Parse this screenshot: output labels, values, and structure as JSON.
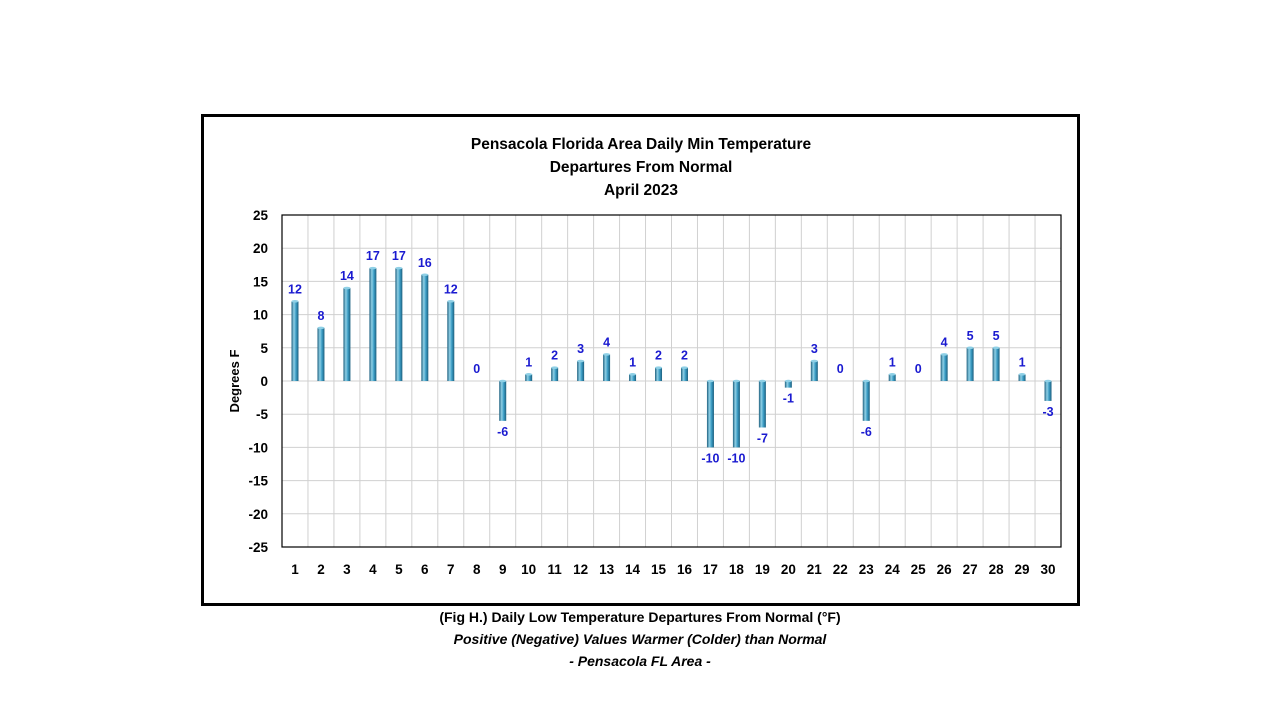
{
  "chart_data": {
    "type": "bar",
    "title": [
      "Pensacola Florida Area Daily Min Temperature",
      "Departures From Normal",
      "April 2023"
    ],
    "xlabel": "",
    "ylabel": "Degrees F",
    "ylim": [
      -25,
      25
    ],
    "yticks": [
      25,
      20,
      15,
      10,
      5,
      0,
      -5,
      -10,
      -15,
      -20,
      -25
    ],
    "grid": true,
    "legend": "none",
    "categories": [
      "1",
      "2",
      "3",
      "4",
      "5",
      "6",
      "7",
      "8",
      "9",
      "10",
      "11",
      "12",
      "13",
      "14",
      "15",
      "16",
      "17",
      "18",
      "19",
      "20",
      "21",
      "22",
      "23",
      "24",
      "25",
      "26",
      "27",
      "28",
      "29",
      "30"
    ],
    "values": [
      12,
      8,
      14,
      17,
      17,
      16,
      12,
      0,
      -6,
      1,
      2,
      3,
      4,
      1,
      2,
      2,
      -10,
      -10,
      -7,
      -1,
      3,
      0,
      -6,
      1,
      0,
      4,
      5,
      5,
      1,
      -3
    ],
    "colors": {
      "bar_light": "#8fd0e6",
      "bar_mid": "#3a9cc4",
      "bar_dark": "#1d5f7e",
      "label": "#1a1ad0",
      "grid": "#d0d0d0"
    }
  },
  "caption": {
    "line1": "(Fig H.) Daily Low Temperature Departures From Normal (°F)",
    "line2": "Positive (Negative) Values Warmer (Colder) than Normal",
    "line3": "- Pensacola FL Area -"
  }
}
